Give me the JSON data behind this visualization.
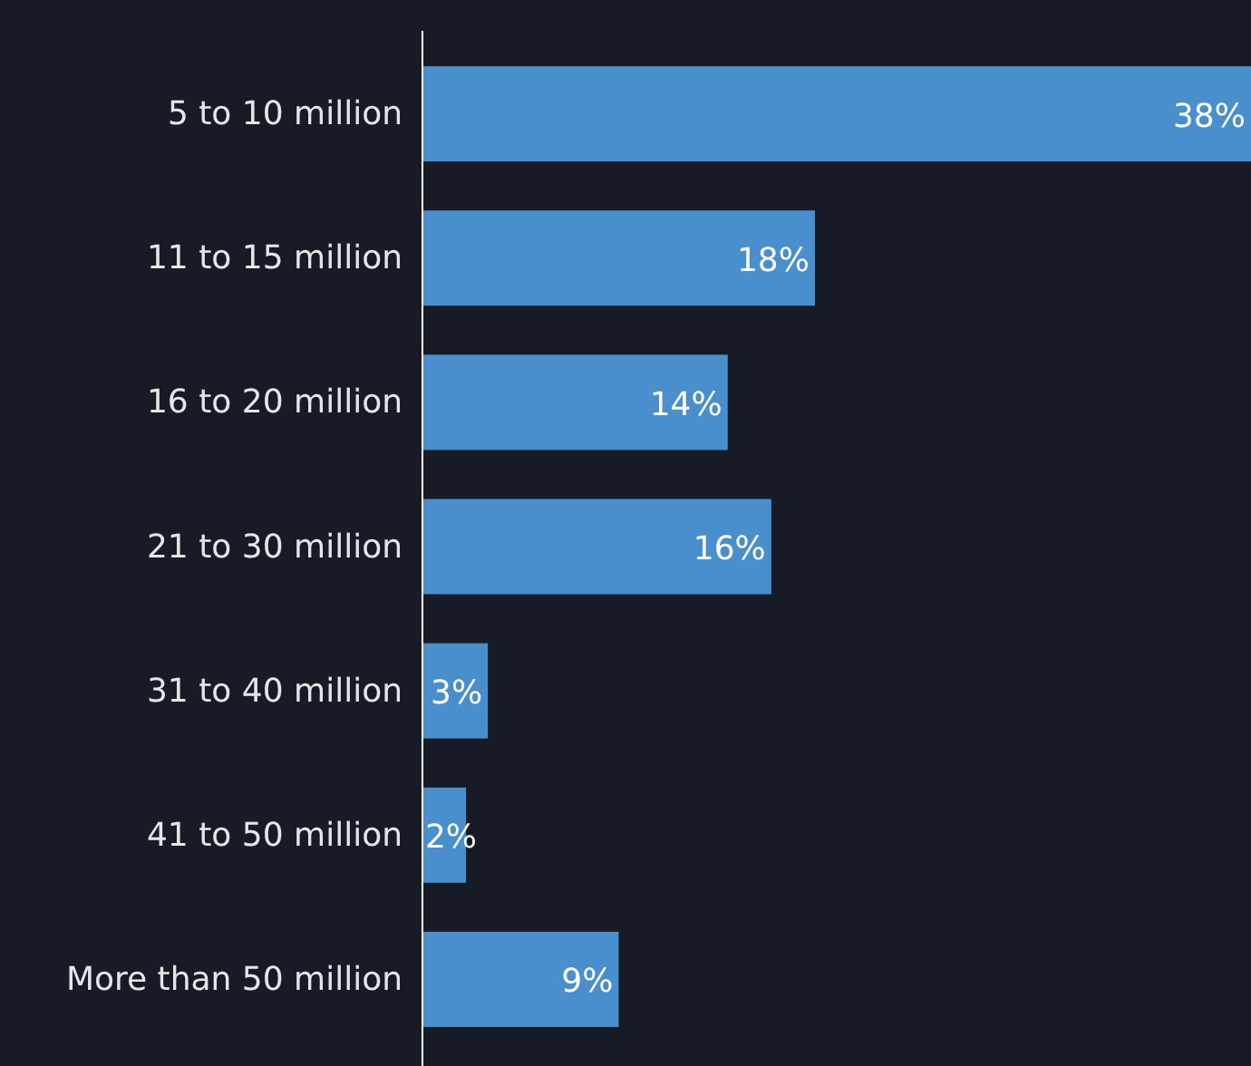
{
  "chart_data": {
    "type": "bar",
    "orientation": "horizontal",
    "categories": [
      "5 to 10 million",
      "11 to 15 million",
      "16 to 20 million",
      "21 to 30 million",
      "31 to 40 million",
      "41 to 50 million",
      "More than 50 million"
    ],
    "values": [
      38,
      18,
      14,
      16,
      3,
      2,
      9
    ],
    "value_labels": [
      "38%",
      "18%",
      "14%",
      "16%",
      "3%",
      "2%",
      "9%"
    ],
    "color": "#4a8fcd"
  }
}
